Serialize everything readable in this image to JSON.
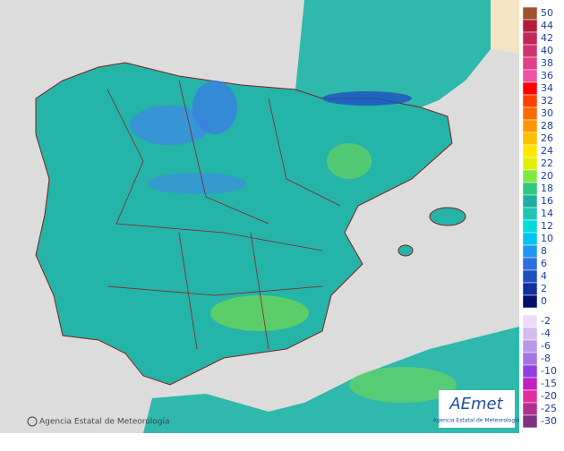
{
  "legend": {
    "items": [
      {
        "label": 50,
        "color": "#a0522d"
      },
      {
        "label": 44,
        "color": "#b01e3c"
      },
      {
        "label": 42,
        "color": "#c02858"
      },
      {
        "label": 40,
        "color": "#d03470"
      },
      {
        "label": 38,
        "color": "#e0408a"
      },
      {
        "label": 36,
        "color": "#f050a8"
      },
      {
        "label": 34,
        "color": "#ff0000"
      },
      {
        "label": 32,
        "color": "#ff4000"
      },
      {
        "label": 30,
        "color": "#ff6a00"
      },
      {
        "label": 28,
        "color": "#ff9600"
      },
      {
        "label": 26,
        "color": "#ffbe00"
      },
      {
        "label": 24,
        "color": "#ffe600"
      },
      {
        "label": 22,
        "color": "#e0f000"
      },
      {
        "label": 20,
        "color": "#80e840"
      },
      {
        "label": 18,
        "color": "#30c880"
      },
      {
        "label": 16,
        "color": "#20aea0"
      },
      {
        "label": 14,
        "color": "#20c4b4"
      },
      {
        "label": 12,
        "color": "#00dcdc"
      },
      {
        "label": 10,
        "color": "#00c4f0"
      },
      {
        "label": 8,
        "color": "#2096f0"
      },
      {
        "label": 6,
        "color": "#306ee0"
      },
      {
        "label": 4,
        "color": "#2050c0"
      },
      {
        "label": 2,
        "color": "#1030a0"
      },
      {
        "label": 0,
        "color": "#001070"
      }
    ],
    "negative_items": [
      {
        "label": -2,
        "color": "#ecdcf8"
      },
      {
        "label": -4,
        "color": "#d4bcf0"
      },
      {
        "label": -6,
        "color": "#bc96e8"
      },
      {
        "label": -8,
        "color": "#a474e0"
      },
      {
        "label": -10,
        "color": "#9040e0"
      },
      {
        "label": -15,
        "color": "#c020c0"
      },
      {
        "label": -20,
        "color": "#e030a0"
      },
      {
        "label": -25,
        "color": "#b03090"
      },
      {
        "label": -30,
        "color": "#803080"
      }
    ]
  },
  "credit": "Agencia Estatal de Meteorología",
  "logo": {
    "name": "AEmet",
    "subtitle": "Agencia Estatal de Meteorología"
  }
}
